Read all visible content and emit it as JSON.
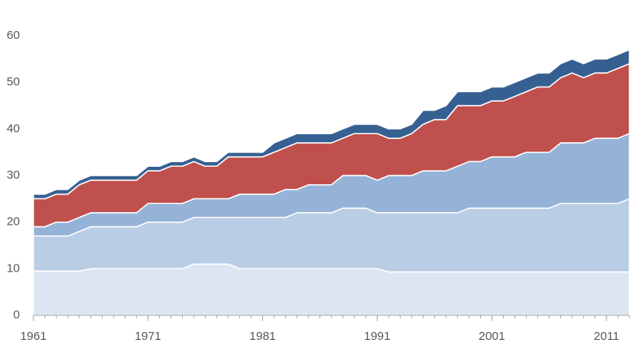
{
  "chart_data": {
    "type": "stacked-area",
    "x": [
      1961,
      1962,
      1963,
      1964,
      1965,
      1966,
      1967,
      1968,
      1969,
      1970,
      1971,
      1972,
      1973,
      1974,
      1975,
      1976,
      1977,
      1978,
      1979,
      1980,
      1981,
      1982,
      1983,
      1984,
      1985,
      1986,
      1987,
      1988,
      1989,
      1990,
      1991,
      1992,
      1993,
      1994,
      1995,
      1996,
      1997,
      1998,
      1999,
      2000,
      2001,
      2002,
      2003,
      2004,
      2005,
      2006,
      2007,
      2008,
      2009,
      2010,
      2011,
      2012,
      2013
    ],
    "series": [
      {
        "color": "#dce6f2",
        "values": [
          9.5,
          9.5,
          9.5,
          9.5,
          9.5,
          10,
          10,
          10,
          10,
          10,
          10,
          10,
          10,
          10,
          11,
          11,
          11,
          11,
          10,
          10,
          10,
          10,
          10,
          10,
          10,
          10,
          10,
          10,
          10,
          10,
          10,
          9.3,
          9.3,
          9.3,
          9.3,
          9.3,
          9.3,
          9.3,
          9.3,
          9.3,
          9.3,
          9.3,
          9.3,
          9.3,
          9.3,
          9.3,
          9.3,
          9.3,
          9.3,
          9.3,
          9.3,
          9.3,
          9.3
        ]
      },
      {
        "color": "#b9cde5",
        "values": [
          7.5,
          7.5,
          7.5,
          7.5,
          8.5,
          9,
          9,
          9,
          9,
          9,
          10,
          10,
          10,
          10,
          10,
          10,
          10,
          10,
          11,
          11,
          11,
          11,
          11,
          12,
          12,
          12,
          12,
          13,
          13,
          13,
          12,
          12.7,
          12.7,
          12.7,
          12.7,
          12.7,
          12.7,
          12.7,
          13.7,
          13.7,
          13.7,
          13.7,
          13.7,
          13.7,
          13.7,
          13.7,
          14.7,
          14.7,
          14.7,
          14.7,
          14.7,
          14.7,
          15.7
        ]
      },
      {
        "color": "#95b3d7",
        "values": [
          2,
          2,
          3,
          3,
          3,
          3,
          3,
          3,
          3,
          3,
          4,
          4,
          4,
          4,
          4,
          4,
          4,
          4,
          5,
          5,
          5,
          5,
          6,
          5,
          6,
          6,
          6,
          7,
          7,
          7,
          7,
          8,
          8,
          8,
          9,
          9,
          9,
          10,
          10,
          10,
          11,
          11,
          11,
          12,
          12,
          12,
          13,
          13,
          13,
          14,
          14,
          14,
          14
        ]
      },
      {
        "color": "#c0504d",
        "values": [
          6,
          6,
          6,
          6,
          7,
          7,
          7,
          7,
          7,
          7,
          7,
          7,
          8,
          8,
          8,
          7,
          7,
          9,
          8,
          8,
          8,
          9,
          9,
          10,
          9,
          9,
          9,
          8,
          9,
          9,
          10,
          8,
          8,
          9,
          10,
          11,
          11,
          13,
          12,
          12,
          12,
          12,
          13,
          13,
          14,
          14,
          14,
          15,
          14,
          14,
          14,
          15,
          15
        ]
      },
      {
        "color": "#376092",
        "values": [
          1,
          1,
          1,
          1,
          1,
          1,
          1,
          1,
          1,
          1,
          1,
          1,
          1,
          1,
          1,
          1,
          1,
          1,
          1,
          1,
          1,
          2,
          2,
          2,
          2,
          2,
          2,
          2,
          2,
          2,
          2,
          2,
          2,
          2,
          3,
          2,
          3,
          3,
          3,
          3,
          3,
          3,
          3,
          3,
          3,
          3,
          3,
          3,
          3,
          3,
          3,
          3,
          3
        ]
      }
    ],
    "xlim": [
      1961,
      2013
    ],
    "xticks": [
      1961,
      1971,
      1981,
      1991,
      2001,
      2011
    ],
    "ylim": [
      0,
      60
    ],
    "yticks": [
      0,
      10,
      20,
      30,
      40,
      50,
      60
    ]
  }
}
